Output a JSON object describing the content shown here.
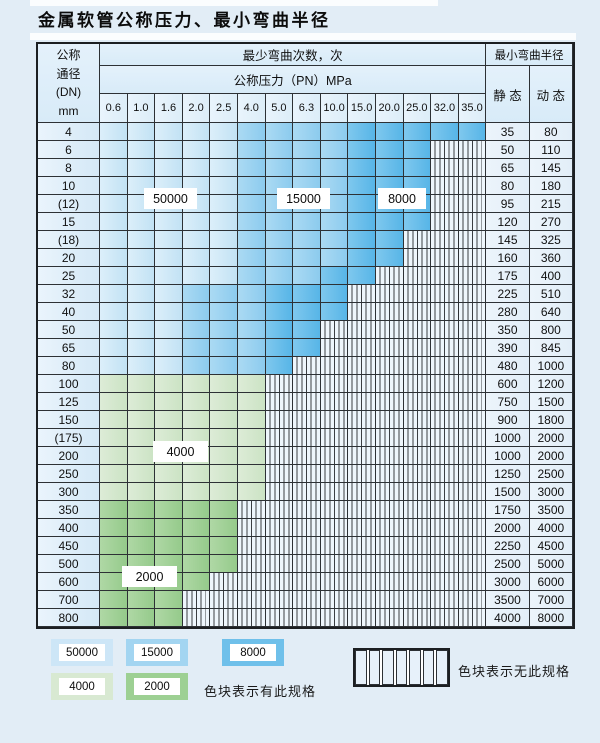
{
  "title": "金属软管公称压力、最小弯曲半径",
  "table": {
    "corner_lines": [
      "公称",
      "通径",
      "(DN)",
      "mm"
    ],
    "cycles_header": "最少弯曲次数，次",
    "pressure_header": "公称压力（PN）MPa",
    "pressure_cols": [
      "0.6",
      "1.0",
      "1.6",
      "2.0",
      "2.5",
      "4.0",
      "5.0",
      "6.3",
      "10.0",
      "15.0",
      "20.0",
      "25.0",
      "32.0",
      "35.0"
    ],
    "radius_header": "最小弯曲半径",
    "static_header": "静 态",
    "dynamic_header": "动 态",
    "zone_meaning": {
      "b1": "50000",
      "b2": "15000",
      "b3": "8000",
      "g1": "4000",
      "g2": "2000",
      "x": "无此规格"
    },
    "rows": [
      {
        "dn": "4",
        "zones": [
          [
            "b1",
            5
          ],
          [
            "b2",
            4
          ],
          [
            "b3",
            5
          ]
        ],
        "static": "35",
        "dynamic": "80"
      },
      {
        "dn": "6",
        "zones": [
          [
            "b1",
            5
          ],
          [
            "b2",
            4
          ],
          [
            "b3",
            3
          ],
          [
            "x",
            2
          ]
        ],
        "static": "50",
        "dynamic": "110"
      },
      {
        "dn": "8",
        "zones": [
          [
            "b1",
            5
          ],
          [
            "b2",
            4
          ],
          [
            "b3",
            3
          ],
          [
            "x",
            2
          ]
        ],
        "static": "65",
        "dynamic": "145"
      },
      {
        "dn": "10",
        "zones": [
          [
            "b1",
            5
          ],
          [
            "b2",
            4
          ],
          [
            "b3",
            3
          ],
          [
            "x",
            2
          ]
        ],
        "static": "80",
        "dynamic": "180"
      },
      {
        "dn": "(12)",
        "zones": [
          [
            "b1",
            5
          ],
          [
            "b2",
            4
          ],
          [
            "b3",
            3
          ],
          [
            "x",
            2
          ]
        ],
        "static": "95",
        "dynamic": "215"
      },
      {
        "dn": "15",
        "zones": [
          [
            "b1",
            5
          ],
          [
            "b2",
            4
          ],
          [
            "b3",
            3
          ],
          [
            "x",
            2
          ]
        ],
        "static": "120",
        "dynamic": "270"
      },
      {
        "dn": "(18)",
        "zones": [
          [
            "b1",
            5
          ],
          [
            "b2",
            4
          ],
          [
            "b3",
            2
          ],
          [
            "x",
            3
          ]
        ],
        "static": "145",
        "dynamic": "325"
      },
      {
        "dn": "20",
        "zones": [
          [
            "b1",
            5
          ],
          [
            "b2",
            4
          ],
          [
            "b3",
            2
          ],
          [
            "x",
            3
          ]
        ],
        "static": "160",
        "dynamic": "360"
      },
      {
        "dn": "25",
        "zones": [
          [
            "b1",
            5
          ],
          [
            "b2",
            3
          ],
          [
            "b3",
            2
          ],
          [
            "x",
            4
          ]
        ],
        "static": "175",
        "dynamic": "400"
      },
      {
        "dn": "32",
        "zones": [
          [
            "b1",
            3
          ],
          [
            "b2",
            3
          ],
          [
            "b3",
            3
          ],
          [
            "x",
            5
          ]
        ],
        "static": "225",
        "dynamic": "510"
      },
      {
        "dn": "40",
        "zones": [
          [
            "b1",
            3
          ],
          [
            "b2",
            3
          ],
          [
            "b3",
            3
          ],
          [
            "x",
            5
          ]
        ],
        "static": "280",
        "dynamic": "640"
      },
      {
        "dn": "50",
        "zones": [
          [
            "b1",
            3
          ],
          [
            "b2",
            3
          ],
          [
            "b3",
            2
          ],
          [
            "x",
            6
          ]
        ],
        "static": "350",
        "dynamic": "800"
      },
      {
        "dn": "65",
        "zones": [
          [
            "b1",
            3
          ],
          [
            "b2",
            3
          ],
          [
            "b3",
            2
          ],
          [
            "x",
            6
          ]
        ],
        "static": "390",
        "dynamic": "845"
      },
      {
        "dn": "80",
        "zones": [
          [
            "b1",
            3
          ],
          [
            "b2",
            3
          ],
          [
            "b3",
            1
          ],
          [
            "x",
            7
          ]
        ],
        "static": "480",
        "dynamic": "1000"
      },
      {
        "dn": "100",
        "zones": [
          [
            "g1",
            6
          ],
          [
            "x",
            8
          ]
        ],
        "static": "600",
        "dynamic": "1200"
      },
      {
        "dn": "125",
        "zones": [
          [
            "g1",
            6
          ],
          [
            "x",
            8
          ]
        ],
        "static": "750",
        "dynamic": "1500"
      },
      {
        "dn": "150",
        "zones": [
          [
            "g1",
            6
          ],
          [
            "x",
            8
          ]
        ],
        "static": "900",
        "dynamic": "1800"
      },
      {
        "dn": "(175)",
        "zones": [
          [
            "g1",
            6
          ],
          [
            "x",
            8
          ]
        ],
        "static": "1000",
        "dynamic": "2000"
      },
      {
        "dn": "200",
        "zones": [
          [
            "g1",
            6
          ],
          [
            "x",
            8
          ]
        ],
        "static": "1000",
        "dynamic": "2000"
      },
      {
        "dn": "250",
        "zones": [
          [
            "g1",
            6
          ],
          [
            "x",
            8
          ]
        ],
        "static": "1250",
        "dynamic": "2500"
      },
      {
        "dn": "300",
        "zones": [
          [
            "g1",
            6
          ],
          [
            "x",
            8
          ]
        ],
        "static": "1500",
        "dynamic": "3000"
      },
      {
        "dn": "350",
        "zones": [
          [
            "g2",
            5
          ],
          [
            "x",
            9
          ]
        ],
        "static": "1750",
        "dynamic": "3500"
      },
      {
        "dn": "400",
        "zones": [
          [
            "g2",
            5
          ],
          [
            "x",
            9
          ]
        ],
        "static": "2000",
        "dynamic": "4000"
      },
      {
        "dn": "450",
        "zones": [
          [
            "g2",
            5
          ],
          [
            "x",
            9
          ]
        ],
        "static": "2250",
        "dynamic": "4500"
      },
      {
        "dn": "500",
        "zones": [
          [
            "g2",
            5
          ],
          [
            "x",
            9
          ]
        ],
        "static": "2500",
        "dynamic": "5000"
      },
      {
        "dn": "600",
        "zones": [
          [
            "g2",
            4
          ],
          [
            "x",
            10
          ]
        ],
        "static": "3000",
        "dynamic": "6000"
      },
      {
        "dn": "700",
        "zones": [
          [
            "g2",
            3
          ],
          [
            "x",
            11
          ]
        ],
        "static": "3500",
        "dynamic": "7000"
      },
      {
        "dn": "800",
        "zones": [
          [
            "g2",
            3
          ],
          [
            "x",
            11
          ]
        ],
        "static": "4000",
        "dynamic": "8000"
      }
    ],
    "zone_labels": [
      "50000",
      "15000",
      "8000",
      "4000",
      "2000"
    ]
  },
  "legend": {
    "chips": [
      {
        "label": "50000",
        "color_key": "b1"
      },
      {
        "label": "15000",
        "color_key": "b2"
      },
      {
        "label": "8000",
        "color_key": "b3"
      },
      {
        "label": "4000",
        "color_key": "g1"
      },
      {
        "label": "2000",
        "color_key": "g2"
      }
    ],
    "has_spec_text": "色块表示有此规格",
    "no_spec_text": "色块表示无此规格"
  },
  "colors": {
    "b1": "#cde6f7",
    "b2": "#a3d5f1",
    "b3": "#6fc0ea",
    "g1": "#d8e9d2",
    "g2": "#9dd093",
    "hatch_bg": "#eef6fc",
    "page_bg": "#e2edf6",
    "grid_line": "#2d3135"
  }
}
